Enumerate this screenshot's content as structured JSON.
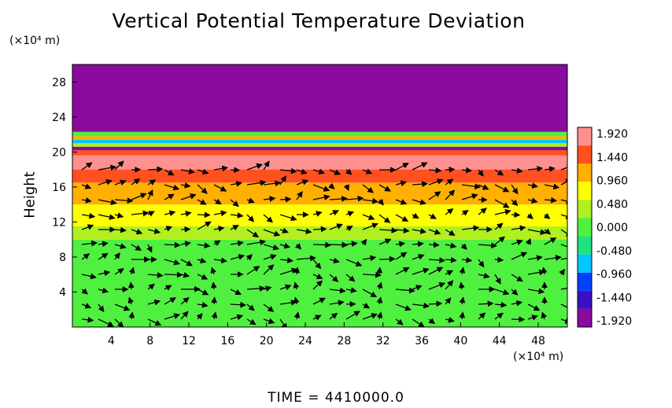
{
  "chart_data": {
    "type": "heatmap",
    "title": "Vertical Potential Temperature Deviation",
    "ylabel": "Height",
    "yunit": "(×10⁴ m)",
    "xunit": "(×10⁴ m)",
    "footer": "TIME  =  4410000.0",
    "x_ticks": [
      "4",
      "8",
      "12",
      "16",
      "20",
      "24",
      "28",
      "32",
      "36",
      "40",
      "44",
      "48"
    ],
    "y_ticks": [
      "4",
      "8",
      "12",
      "16",
      "20",
      "24",
      "28"
    ],
    "xlim": [
      0,
      51
    ],
    "ylim": [
      0,
      30
    ],
    "colorbar": {
      "labels": [
        "1.920",
        "1.440",
        "0.960",
        "0.480",
        "0.000",
        "-0.480",
        "-0.960",
        "-1.440",
        "-1.920"
      ],
      "range": [
        -1.92,
        1.92
      ]
    },
    "bands": [
      {
        "y_from": 0,
        "y_to": 10,
        "value": 0.05
      },
      {
        "y_from": 10,
        "y_to": 11.5,
        "value": 0.25
      },
      {
        "y_from": 11.5,
        "y_to": 14,
        "value": 0.65
      },
      {
        "y_from": 14,
        "y_to": 16.5,
        "value": 0.9
      },
      {
        "y_from": 16.5,
        "y_to": 18,
        "value": 1.35
      },
      {
        "y_from": 18,
        "y_to": 19.6,
        "value": 1.75
      },
      {
        "y_from": 19.6,
        "y_to": 20.2,
        "value": 1.5
      },
      {
        "y_from": 20.2,
        "y_to": 20.6,
        "value": -1.92
      },
      {
        "y_from": 20.6,
        "y_to": 21,
        "value": 0.3
      },
      {
        "y_from": 21,
        "y_to": 21.4,
        "value": -0.7
      },
      {
        "y_from": 21.4,
        "y_to": 21.8,
        "value": 0.9
      },
      {
        "y_from": 21.8,
        "y_to": 22.3,
        "value": 0.0
      },
      {
        "y_from": 22.3,
        "y_to": 30,
        "value": -1.92
      }
    ],
    "vector_field": {
      "type": "wind-vectors",
      "nx": 30,
      "ny": 11
    }
  },
  "colors": {
    "scale": [
      "#8a0aa0",
      "#3a10c0",
      "#0040ff",
      "#00c8ff",
      "#20e080",
      "#50f040",
      "#b0f020",
      "#ffff00",
      "#ffb000",
      "#ff5020",
      "#ff9090"
    ]
  }
}
